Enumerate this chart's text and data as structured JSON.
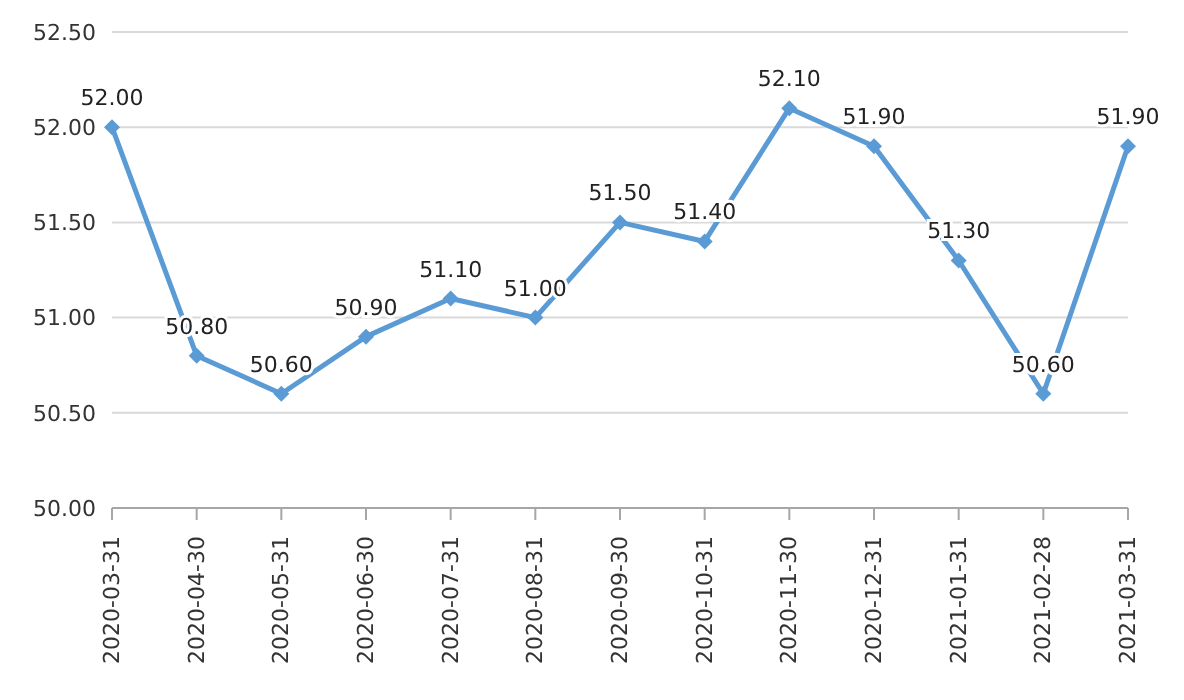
{
  "chart_data": {
    "type": "line",
    "categories": [
      "2020-03-31",
      "2020-04-30",
      "2020-05-31",
      "2020-06-30",
      "2020-07-31",
      "2020-08-31",
      "2020-09-30",
      "2020-10-31",
      "2020-11-30",
      "2020-12-31",
      "2021-01-31",
      "2021-02-28",
      "2021-03-31"
    ],
    "series": [
      {
        "color": "#5b9bd5",
        "values": [
          52.0,
          50.8,
          50.6,
          50.9,
          51.1,
          51.0,
          51.5,
          51.4,
          52.1,
          51.9,
          51.3,
          50.6,
          51.9
        ],
        "value_labels": [
          "52.00",
          "50.80",
          "50.60",
          "50.90",
          "51.10",
          "51.00",
          "51.50",
          "51.40",
          "52.10",
          "51.90",
          "51.30",
          "50.60",
          "51.90"
        ]
      }
    ],
    "ylim": [
      50,
      52.5
    ],
    "yticks": [
      {
        "value": 50,
        "label": "50.00"
      },
      {
        "value": 50.5,
        "label": "50.50"
      },
      {
        "value": 51,
        "label": "51.00"
      },
      {
        "value": 51.5,
        "label": "51.50"
      },
      {
        "value": 52,
        "label": "52.00"
      },
      {
        "value": 52.5,
        "label": "52.50"
      }
    ],
    "grid": "y",
    "marker": "diamond",
    "line_style": "solid"
  }
}
